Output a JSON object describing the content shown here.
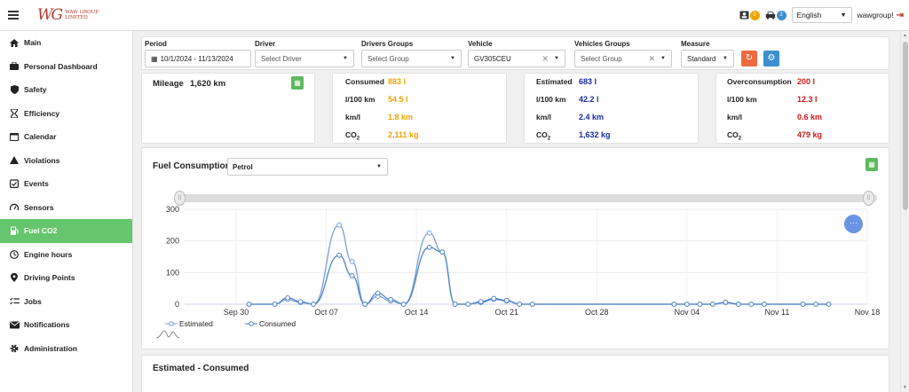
{
  "header": {
    "logo_mark": "WG",
    "logo_line1": "WAW GROUP",
    "logo_line2": "LIMITED",
    "badge_drivers": "0",
    "badge_vehicles": "2",
    "language": "English",
    "username": "wawgroup!"
  },
  "sidebar": {
    "items": [
      {
        "label": "Main",
        "icon": "home-icon"
      },
      {
        "label": "Personal Dashboard",
        "icon": "briefcase-icon"
      },
      {
        "label": "Safety",
        "icon": "shield-icon"
      },
      {
        "label": "Efficiency",
        "icon": "hourglass-icon"
      },
      {
        "label": "Calendar",
        "icon": "calendar-icon"
      },
      {
        "label": "Violations",
        "icon": "warning-icon"
      },
      {
        "label": "Events",
        "icon": "events-icon"
      },
      {
        "label": "Sensors",
        "icon": "gauge-icon"
      },
      {
        "label": "Fuel CO2",
        "icon": "fuel-icon",
        "active": true
      },
      {
        "label": "Engine hours",
        "icon": "clock-icon"
      },
      {
        "label": "Driving Points",
        "icon": "pin-icon"
      },
      {
        "label": "Jobs",
        "icon": "checklist-icon"
      },
      {
        "label": "Notifications",
        "icon": "mail-icon"
      },
      {
        "label": "Administration",
        "icon": "gear-icon"
      }
    ]
  },
  "filters": {
    "period_label": "Period",
    "period_value": "10/1/2024 - 11/13/2024",
    "driver_label": "Driver",
    "driver_placeholder": "Select Driver",
    "drivers_groups_label": "Drivers Groups",
    "drivers_groups_placeholder": "Select Group",
    "vehicle_label": "Vehicle",
    "vehicle_value": "GV305CEU",
    "vehicles_groups_label": "Vehicles Groups",
    "vehicles_groups_placeholder": "Select Group",
    "measure_label": "Measure",
    "measure_value": "Standard"
  },
  "mileage": {
    "label": "Mileage",
    "value": "1,620 km"
  },
  "consumed": {
    "title": "Consumed",
    "title_value": "883 l",
    "rows": [
      {
        "label": "l/100 km",
        "value": "54.5 l"
      },
      {
        "label": "km/l",
        "value": "1.8 km"
      },
      {
        "label": "CO",
        "sub": "2",
        "value": "2,111 kg"
      }
    ]
  },
  "estimated": {
    "title": "Estimated",
    "title_value": "683 l",
    "rows": [
      {
        "label": "l/100 km",
        "value": "42.2 l"
      },
      {
        "label": "km/l",
        "value": "2.4 km"
      },
      {
        "label": "CO",
        "sub": "2",
        "value": "1,632 kg"
      }
    ]
  },
  "overconsumption": {
    "title": "Overconsumption",
    "title_value": "200 l",
    "rows": [
      {
        "label": "l/100 km",
        "value": "12.3 l"
      },
      {
        "label": "km/l",
        "value": "0.6 km"
      },
      {
        "label": "CO",
        "sub": "2",
        "value": "479 kg"
      }
    ]
  },
  "fuel_panel": {
    "title": "Fuel Consumption",
    "fuel_type": "Petrol"
  },
  "bottom_panel": {
    "title": "Estimated - Consumed"
  },
  "chart_data": {
    "type": "line",
    "x_ticks": [
      "Sep 30",
      "Oct 07",
      "Oct 14",
      "Oct 21",
      "Oct 28",
      "Nov 04",
      "Nov 11",
      "Nov 18"
    ],
    "y_ticks": [
      "0",
      "100",
      "200",
      "300"
    ],
    "ylim": [
      0,
      300
    ],
    "x_range_days": [
      -4,
      49
    ],
    "x_origin_label": "Sep 30",
    "series": [
      {
        "name": "Estimated",
        "color": "#7aa0d6",
        "points": [
          [
            1,
            0
          ],
          [
            3,
            0
          ],
          [
            4,
            15
          ],
          [
            5,
            5
          ],
          [
            6,
            0
          ],
          [
            8,
            250
          ],
          [
            9,
            135
          ],
          [
            10,
            0
          ],
          [
            11,
            25
          ],
          [
            12,
            10
          ],
          [
            13,
            0
          ],
          [
            15,
            225
          ],
          [
            16,
            165
          ],
          [
            17,
            0
          ],
          [
            18,
            0
          ],
          [
            19,
            5
          ],
          [
            20,
            15
          ],
          [
            21,
            10
          ],
          [
            22,
            0
          ],
          [
            23,
            0
          ],
          [
            34,
            0
          ],
          [
            35,
            0
          ],
          [
            36,
            0
          ],
          [
            37,
            0
          ],
          [
            38,
            5
          ],
          [
            39,
            0
          ],
          [
            40,
            0
          ],
          [
            41,
            0
          ],
          [
            44,
            0
          ],
          [
            45,
            0
          ],
          [
            46,
            0
          ]
        ]
      },
      {
        "name": "Consumed",
        "color": "#4f84c4",
        "points": [
          [
            1,
            0
          ],
          [
            3,
            0
          ],
          [
            4,
            20
          ],
          [
            5,
            8
          ],
          [
            6,
            0
          ],
          [
            8,
            155
          ],
          [
            9,
            90
          ],
          [
            10,
            0
          ],
          [
            11,
            35
          ],
          [
            12,
            15
          ],
          [
            13,
            0
          ],
          [
            15,
            180
          ],
          [
            16,
            165
          ],
          [
            17,
            0
          ],
          [
            18,
            0
          ],
          [
            19,
            8
          ],
          [
            20,
            18
          ],
          [
            21,
            12
          ],
          [
            22,
            0
          ],
          [
            23,
            0
          ],
          [
            34,
            0
          ],
          [
            35,
            0
          ],
          [
            36,
            0
          ],
          [
            37,
            0
          ],
          [
            38,
            6
          ],
          [
            39,
            0
          ],
          [
            40,
            0
          ],
          [
            41,
            0
          ],
          [
            44,
            0
          ],
          [
            45,
            0
          ],
          [
            46,
            0
          ]
        ]
      }
    ]
  }
}
